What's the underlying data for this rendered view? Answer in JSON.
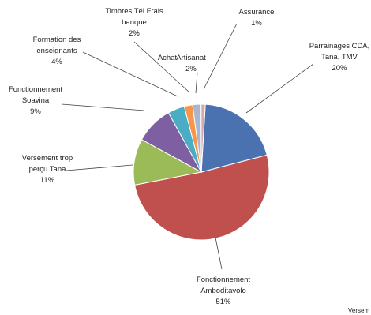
{
  "chart_data": {
    "type": "pie",
    "slices": [
      {
        "lines": [
          "Parrainages CDA,",
          "Tana, TMV",
          "20%"
        ],
        "value": 20,
        "color": "#4a72b0"
      },
      {
        "lines": [
          "Fonctionnement",
          "Amboditavolo",
          "51%"
        ],
        "value": 51,
        "color": "#c0504d"
      },
      {
        "lines": [
          "Versement trop",
          "perçu Tana",
          "11%"
        ],
        "value": 11,
        "color": "#9bbb59"
      },
      {
        "lines": [
          "Fonctionnement",
          "Soavina",
          "9%"
        ],
        "value": 9,
        "color": "#7e5fa2"
      },
      {
        "lines": [
          "Formation des",
          "enseignants",
          "4%"
        ],
        "value": 4,
        "color": "#4bacc6"
      },
      {
        "lines": [
          "Timbres Tél Frais",
          "banque",
          "2%"
        ],
        "value": 2,
        "color": "#f79646"
      },
      {
        "lines": [
          "Achat"
        ],
        "value": null,
        "color": null
      },
      {
        "lines": [
          "Artisanat",
          "2%"
        ],
        "value": 2,
        "color": "#a9b6d3"
      },
      {
        "lines": [
          "Assurance",
          "1%"
        ],
        "value": 1,
        "color": "#d9a9a9"
      }
    ],
    "cutoff_text": "Versem"
  }
}
